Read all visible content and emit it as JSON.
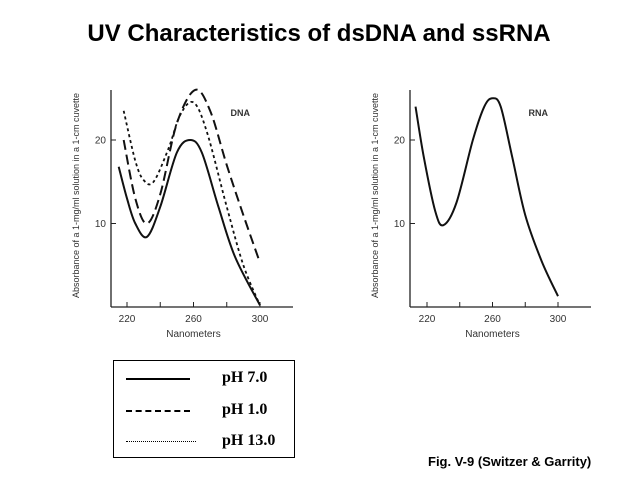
{
  "title": "UV Characteristics of dsDNA and ssRNA",
  "caption": "Fig. V-9 (Switzer & Garrity)",
  "legend": [
    {
      "style": "solid",
      "label": "pH 7.0"
    },
    {
      "style": "dashed",
      "label": "pH 1.0"
    },
    {
      "style": "dotted",
      "label": "pH 13.0"
    }
  ],
  "chart_data": [
    {
      "type": "line",
      "title": "DNA",
      "xlabel": "Nanometers",
      "ylabel": "Absorbance of a 1-mg/ml solution in a 1-cm cuvette",
      "xticks": [
        220,
        240,
        260,
        280,
        300
      ],
      "xtick_labels": [
        "220",
        "260",
        "300"
      ],
      "yticks": [
        10,
        20
      ],
      "xlim": [
        210,
        320
      ],
      "ylim": [
        0,
        26
      ],
      "series": [
        {
          "name": "pH 7.0",
          "style": "solid",
          "x": [
            215,
            220,
            225,
            232,
            240,
            250,
            258,
            265,
            275,
            285,
            300
          ],
          "values": [
            16.8,
            13,
            10,
            8.4,
            12,
            18.5,
            20,
            18.5,
            12,
            6,
            0.2
          ]
        },
        {
          "name": "pH 1.0",
          "style": "dashed",
          "x": [
            218,
            225,
            232,
            240,
            250,
            261,
            270,
            280,
            290,
            300
          ],
          "values": [
            20,
            13,
            10,
            13.5,
            22,
            26,
            23.5,
            17,
            11,
            5.3
          ]
        },
        {
          "name": "pH 13.0",
          "style": "dotted",
          "x": [
            218,
            225,
            230,
            236,
            245,
            252,
            260,
            268,
            280,
            290,
            300
          ],
          "values": [
            23.5,
            17.5,
            15.2,
            15,
            19,
            23,
            24.5,
            21,
            12,
            5,
            0.2
          ]
        }
      ]
    },
    {
      "type": "line",
      "title": "RNA",
      "xlabel": "Nanometers",
      "ylabel": "Absorbance of a 1-mg/ml solution in a 1-cm cuvette",
      "xticks": [
        220,
        240,
        260,
        280,
        300
      ],
      "xtick_labels": [
        "220",
        "260",
        "300"
      ],
      "yticks": [
        10,
        20
      ],
      "xlim": [
        210,
        320
      ],
      "ylim": [
        0,
        26
      ],
      "series": [
        {
          "name": "RNA",
          "style": "solid",
          "x": [
            213,
            218,
            225,
            230,
            238,
            248,
            255,
            260,
            265,
            272,
            280,
            290,
            300
          ],
          "values": [
            24,
            18,
            11.5,
            9.8,
            12.5,
            20,
            24,
            25,
            24,
            18,
            11,
            5.5,
            1.3
          ]
        }
      ]
    }
  ]
}
